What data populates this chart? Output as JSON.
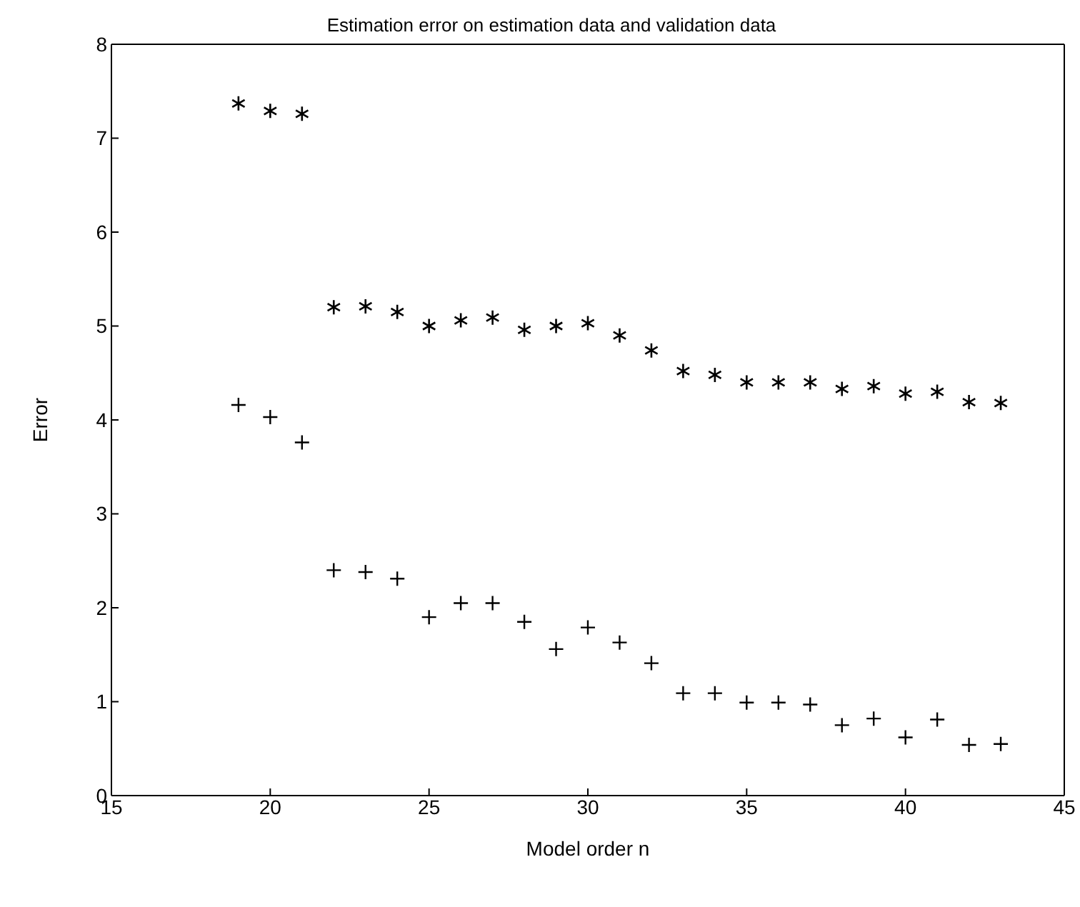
{
  "chart_data": {
    "type": "scatter",
    "title": "Estimation error on estimation data and validation data",
    "xlabel": "Model order n",
    "ylabel": "Error",
    "x": [
      19,
      20,
      21,
      22,
      23,
      24,
      25,
      26,
      27,
      28,
      29,
      30,
      31,
      32,
      33,
      34,
      35,
      36,
      37,
      38,
      39,
      40,
      41,
      42,
      43
    ],
    "series": [
      {
        "color": "#000000",
        "values": [
          7.37,
          7.29,
          7.26,
          5.2,
          5.21,
          5.15,
          5.0,
          5.06,
          5.09,
          4.96,
          5.0,
          5.03,
          4.9,
          4.74,
          4.52,
          4.48,
          4.4,
          4.4,
          4.4,
          4.33,
          4.36,
          4.28,
          4.3,
          4.19,
          4.18
        ]
      },
      {
        "color": "#000000",
        "marker": "cross",
        "values": [
          4.16,
          4.03,
          3.76,
          2.4,
          2.38,
          2.31,
          1.9,
          2.05,
          2.05,
          1.85,
          1.56,
          1.79,
          1.63,
          1.41,
          1.09,
          1.09,
          0.99,
          0.99,
          0.97,
          0.75,
          0.82,
          0.62,
          0.81,
          0.54,
          0.55
        ]
      }
    ],
    "xlim": [
      15,
      45
    ],
    "xticks": [
      15,
      20,
      25,
      30,
      35,
      40,
      45
    ],
    "ylim": [
      0,
      8
    ],
    "yticks": [
      0,
      1,
      2,
      3,
      4,
      5,
      6,
      7,
      8
    ]
  }
}
